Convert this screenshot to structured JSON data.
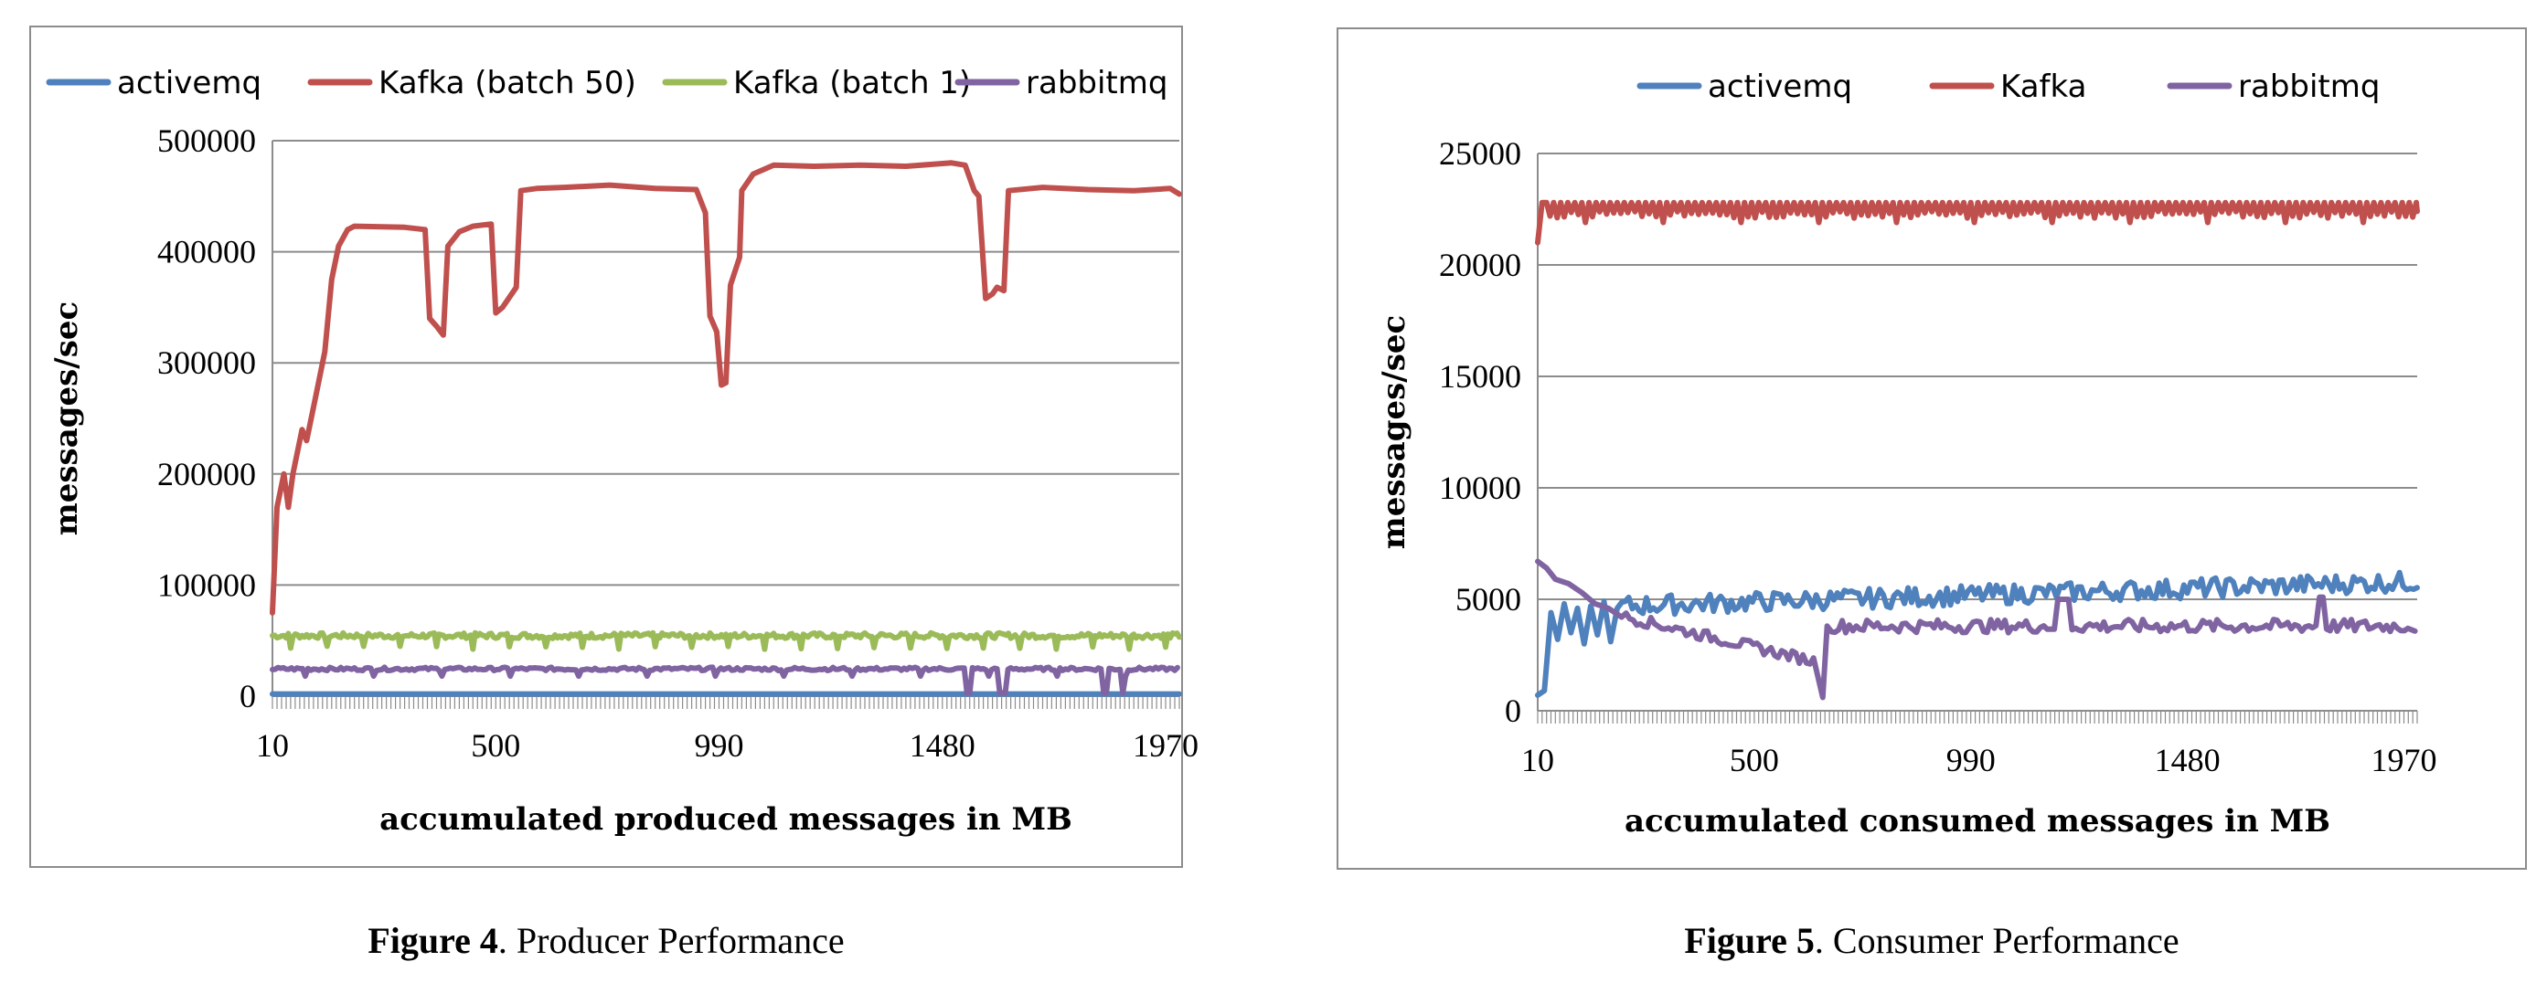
{
  "figures": [
    {
      "caption_label": "Figure 4",
      "caption_text": ". Producer Performance"
    },
    {
      "caption_label": "Figure 5",
      "caption_text": ". Consumer Performance"
    }
  ],
  "chart_data": [
    {
      "type": "line",
      "title": "",
      "xlabel": "accumulated produced messages in MB",
      "ylabel": "messages/sec",
      "ylim": [
        0,
        500000
      ],
      "yticks": [
        0,
        100000,
        200000,
        300000,
        400000,
        500000
      ],
      "xlim": [
        10,
        2000
      ],
      "xticks": [
        10,
        500,
        990,
        1480,
        1970
      ],
      "grid": true,
      "legend": "top",
      "colors": {
        "activemq": "#4f81bd",
        "Kafka (batch 50)": "#c0504d",
        "Kafka (batch 1)": "#9bbb59",
        "rabbitmq": "#8064a2"
      },
      "series": [
        {
          "name": "activemq",
          "points": [
            [
              10,
              2000
            ],
            [
              2000,
              2000
            ]
          ]
        },
        {
          "name": "Kafka (batch 50)",
          "points": [
            [
              10,
              75000
            ],
            [
              20,
              170000
            ],
            [
              35,
              200000
            ],
            [
              45,
              170000
            ],
            [
              55,
              200000
            ],
            [
              75,
              240000
            ],
            [
              85,
              230000
            ],
            [
              105,
              270000
            ],
            [
              125,
              310000
            ],
            [
              140,
              375000
            ],
            [
              155,
              405000
            ],
            [
              175,
              420000
            ],
            [
              190,
              423000
            ],
            [
              300,
              422000
            ],
            [
              345,
              420000
            ],
            [
              355,
              340000
            ],
            [
              370,
              333000
            ],
            [
              385,
              325000
            ],
            [
              395,
              405000
            ],
            [
              420,
              418000
            ],
            [
              450,
              423000
            ],
            [
              490,
              425000
            ],
            [
              500,
              345000
            ],
            [
              515,
              350000
            ],
            [
              545,
              368000
            ],
            [
              555,
              455000
            ],
            [
              590,
              457000
            ],
            [
              650,
              458000
            ],
            [
              750,
              460000
            ],
            [
              850,
              457000
            ],
            [
              940,
              456000
            ],
            [
              960,
              435000
            ],
            [
              970,
              342000
            ],
            [
              985,
              328000
            ],
            [
              995,
              280000
            ],
            [
              1005,
              282000
            ],
            [
              1015,
              370000
            ],
            [
              1035,
              395000
            ],
            [
              1040,
              455000
            ],
            [
              1065,
              470000
            ],
            [
              1110,
              478000
            ],
            [
              1200,
              477000
            ],
            [
              1300,
              478000
            ],
            [
              1400,
              477000
            ],
            [
              1500,
              480000
            ],
            [
              1530,
              478000
            ],
            [
              1550,
              455000
            ],
            [
              1560,
              450000
            ],
            [
              1575,
              358000
            ],
            [
              1590,
              362000
            ],
            [
              1600,
              368000
            ],
            [
              1615,
              365000
            ],
            [
              1625,
              455000
            ],
            [
              1700,
              458000
            ],
            [
              1800,
              456000
            ],
            [
              1900,
              455000
            ],
            [
              1980,
              457000
            ],
            [
              2000,
              452000
            ]
          ]
        },
        {
          "name": "Kafka (batch 1)",
          "points": "kafka1"
        },
        {
          "name": "rabbitmq",
          "points": "rabbit1"
        }
      ]
    },
    {
      "type": "line",
      "title": "",
      "xlabel": "accumulated consumed messages in MB",
      "ylabel": "messages/sec",
      "ylim": [
        0,
        25000
      ],
      "yticks": [
        0,
        5000,
        10000,
        15000,
        20000,
        25000
      ],
      "xlim": [
        10,
        2000
      ],
      "xticks": [
        10,
        500,
        990,
        1480,
        1970
      ],
      "grid": true,
      "legend": "top",
      "colors": {
        "activemq": "#4f81bd",
        "Kafka": "#c0504d",
        "rabbitmq": "#8064a2"
      },
      "series": [
        {
          "name": "activemq",
          "points": "activemq2"
        },
        {
          "name": "Kafka",
          "points": "kafka2"
        },
        {
          "name": "rabbitmq",
          "points": "rabbit2"
        }
      ]
    }
  ]
}
